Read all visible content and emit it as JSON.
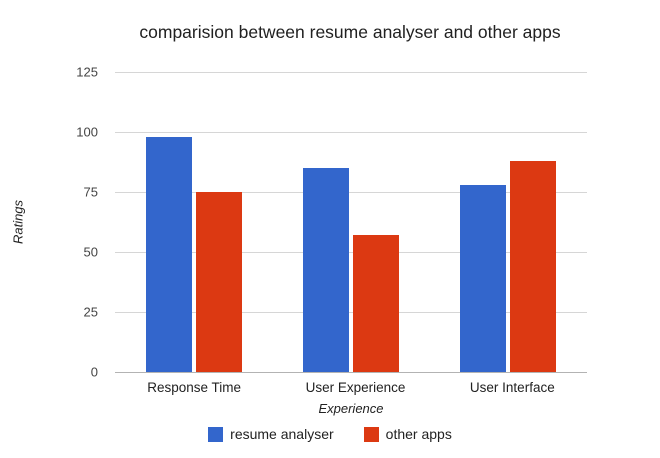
{
  "chart_data": {
    "type": "bar",
    "title": "comparision between resume analyser and other apps",
    "categories": [
      "Response Time",
      "User Experience",
      "User Interface"
    ],
    "series": [
      {
        "name": "resume analyser",
        "color": "#3366cc",
        "values": [
          98,
          85,
          78
        ]
      },
      {
        "name": "other apps",
        "color": "#dc3912",
        "values": [
          75,
          57,
          88
        ]
      }
    ],
    "xlabel": "Experience",
    "ylabel": "Ratings",
    "ylim": [
      0,
      125
    ],
    "yticks": [
      0,
      25,
      50,
      75,
      100,
      125
    ],
    "grid": true,
    "legend_position": "bottom"
  }
}
